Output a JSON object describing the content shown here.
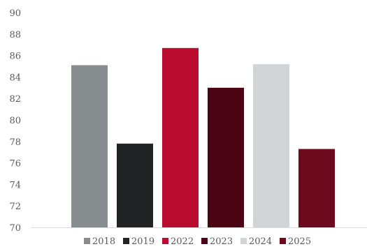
{
  "chart_data": {
    "type": "bar",
    "categories": [
      ""
    ],
    "series": [
      {
        "name": "2018",
        "values": [
          85.1
        ],
        "color": "#878c8f"
      },
      {
        "name": "2019",
        "values": [
          77.8
        ],
        "color": "#222324"
      },
      {
        "name": "2022",
        "values": [
          86.7
        ],
        "color": "#ba0c2f"
      },
      {
        "name": "2023",
        "values": [
          83.0
        ],
        "color": "#4a0414"
      },
      {
        "name": "2024",
        "values": [
          85.2
        ],
        "color": "#d1d5d8"
      },
      {
        "name": "2025",
        "values": [
          77.3
        ],
        "color": "#6e0a1e"
      }
    ],
    "yticks": [
      "70",
      "72",
      "74",
      "76",
      "78",
      "80",
      "82",
      "84",
      "86",
      "88",
      "90"
    ],
    "ylim": [
      70,
      90
    ],
    "grid": false,
    "legend_position": "bottom"
  }
}
